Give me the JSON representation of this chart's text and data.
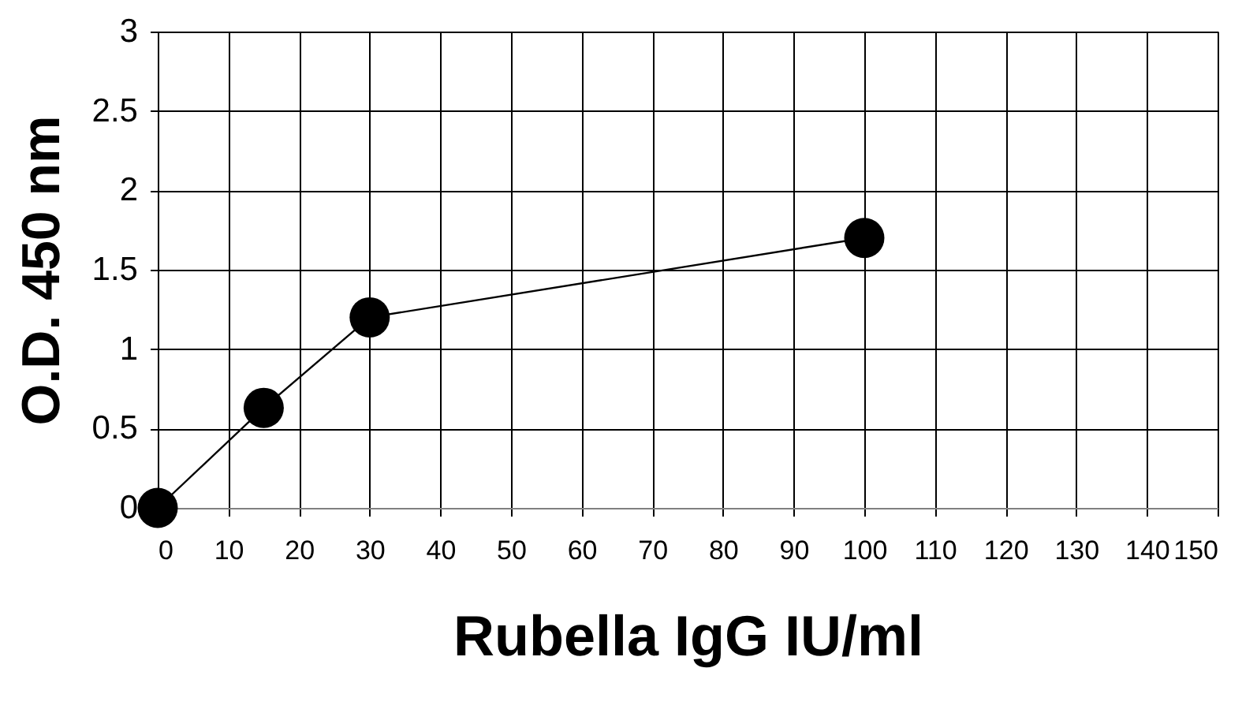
{
  "chart_data": {
    "type": "line",
    "xlabel": "Rubella IgG  IU/ml",
    "ylabel": "O.D. 450 nm",
    "x": [
      0,
      15,
      30,
      100
    ],
    "series": [
      {
        "color": "#000000",
        "values": [
          0,
          0.63,
          1.2,
          1.7
        ]
      }
    ],
    "xlim": [
      0,
      150
    ],
    "xticks": [
      0,
      10,
      20,
      30,
      40,
      50,
      60,
      70,
      80,
      90,
      100,
      110,
      120,
      130,
      140,
      150
    ],
    "ylim": [
      0,
      3
    ],
    "yticks": [
      0,
      0.5,
      1,
      1.5,
      2,
      2.5,
      3
    ],
    "grid": true,
    "marker": "circle",
    "line_style": "solid"
  }
}
